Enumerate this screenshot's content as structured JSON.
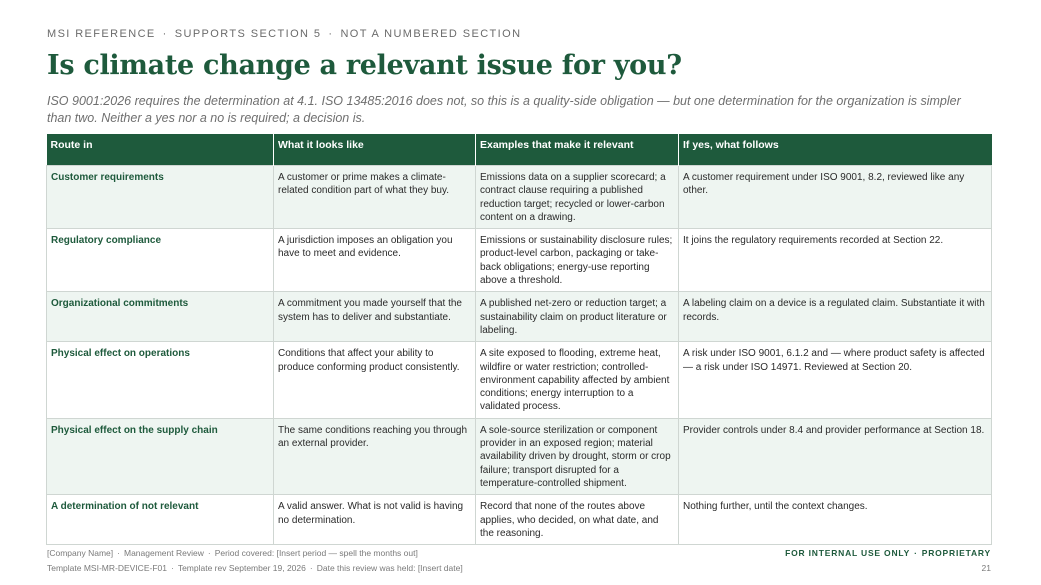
{
  "header": {
    "eyebrow": [
      "MSI REFERENCE",
      "SUPPORTS SECTION 5",
      "NOT A NUMBERED SECTION"
    ],
    "eyebrow_separator": "·",
    "title": "Is climate change a relevant issue for you?",
    "subtitle": "ISO 9001:2026 requires the determination at 4.1. ISO 13485:2016 does not, so this is a quality-side obligation — but one determination for the organization is simpler than two. Neither a yes nor a no is required; a decision is."
  },
  "table": {
    "columns": [
      "Route in",
      "What it looks like",
      "Examples that make it relevant",
      "If yes, what follows"
    ],
    "rows": [
      {
        "route": "Customer requirements",
        "looks_like": "A customer or prime makes a climate-related condition part of what they buy.",
        "examples": "Emissions data on a supplier scorecard; a contract clause requiring a published reduction target; recycled or lower-carbon content on a drawing.",
        "follows": "A customer requirement under ISO 9001, 8.2, reviewed like any other."
      },
      {
        "route": "Regulatory compliance",
        "looks_like": "A jurisdiction imposes an obligation you have to meet and evidence.",
        "examples": "Emissions or sustainability disclosure rules; product-level carbon, packaging or take-back obligations; energy-use reporting above a threshold.",
        "follows": "It joins the regulatory requirements recorded at Section 22."
      },
      {
        "route": "Organizational commitments",
        "looks_like": "A commitment you made yourself that the system has to deliver and substantiate.",
        "examples": "A published net-zero or reduction target; a sustainability claim on product literature or labeling.",
        "follows": "A labeling claim on a device is a regulated claim. Substantiate it with records."
      },
      {
        "route": "Physical effect on operations",
        "looks_like": "Conditions that affect your ability to produce conforming product consistently.",
        "examples": "A site exposed to flooding, extreme heat, wildfire or water restriction; controlled-environment capability affected by ambient conditions; energy interruption to a validated process.",
        "follows": "A risk under ISO 9001, 6.1.2 and — where product safety is affected — a risk under ISO 14971. Reviewed at Section 20."
      },
      {
        "route": "Physical effect on the supply chain",
        "looks_like": "The same conditions reaching you through an external provider.",
        "examples": "A sole-source sterilization or component provider in an exposed region; material availability driven by drought, storm or crop failure; transport disrupted for a temperature-controlled shipment.",
        "follows": "Provider controls under 8.4 and provider performance at Section 18."
      },
      {
        "route": "A determination of not relevant",
        "looks_like": "A valid answer. What is not valid is having no determination.",
        "examples": "Record that none of the routes above applies, who decided, on what date, and the reasoning.",
        "follows": "Nothing further, until the context changes."
      }
    ]
  },
  "footer": {
    "left_line1": [
      "[Company Name]",
      "Management Review",
      "Period covered: [Insert period — spell the months out]"
    ],
    "left_line2": [
      "Template MSI-MR-DEVICE-F01",
      "Template rev September 19, 2026",
      "Date this review was held: [Insert date]"
    ],
    "separator": "·",
    "confidentiality": [
      "FOR INTERNAL USE ONLY",
      "PROPRIETARY"
    ],
    "page_number": "21"
  },
  "colors": {
    "accent": "#1e5a3c",
    "row_tint": "#eef5f1"
  }
}
